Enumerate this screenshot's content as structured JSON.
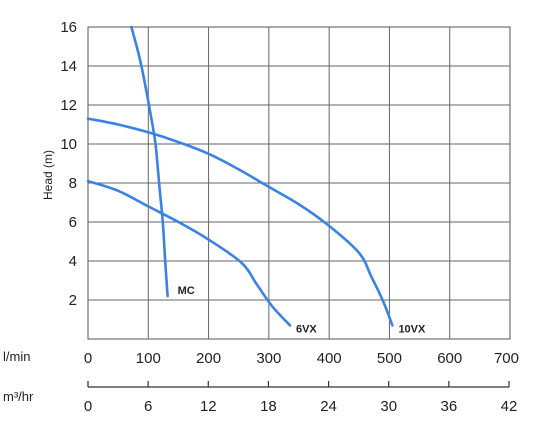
{
  "chart_data": {
    "type": "line",
    "title": "",
    "ylabel": "Head (m)",
    "ylim": [
      0,
      16
    ],
    "yticks": [
      2,
      4,
      6,
      8,
      10,
      12,
      14,
      16
    ],
    "xlim": [
      0,
      700
    ],
    "x_primary": {
      "unit_label": "l/min",
      "ticks": [
        0,
        100,
        200,
        300,
        400,
        500,
        600,
        700
      ]
    },
    "x_secondary": {
      "unit_label": "m³/hr",
      "ticks": [
        0,
        6,
        12,
        18,
        24,
        30,
        36,
        42
      ]
    },
    "grid": true,
    "series": [
      {
        "name": "MC",
        "color": "#3b82e6",
        "x": [
          72,
          85,
          95,
          104,
          112,
          118,
          124,
          128,
          132
        ],
        "y": [
          16,
          14.5,
          13,
          11.5,
          10,
          8,
          6,
          4,
          2.2
        ]
      },
      {
        "name": "6VX",
        "color": "#3b82e6",
        "x": [
          0,
          50,
          100,
          150,
          200,
          255,
          280,
          305,
          335
        ],
        "y": [
          8.1,
          7.6,
          6.8,
          6.0,
          5.1,
          3.9,
          2.8,
          1.7,
          0.7
        ]
      },
      {
        "name": "10VX",
        "color": "#3b82e6",
        "x": [
          0,
          50,
          100,
          150,
          200,
          250,
          300,
          350,
          400,
          450,
          470,
          490,
          505
        ],
        "y": [
          11.3,
          11.0,
          10.6,
          10.1,
          9.5,
          8.7,
          7.8,
          6.9,
          5.8,
          4.4,
          3.2,
          1.9,
          0.7
        ]
      }
    ]
  }
}
